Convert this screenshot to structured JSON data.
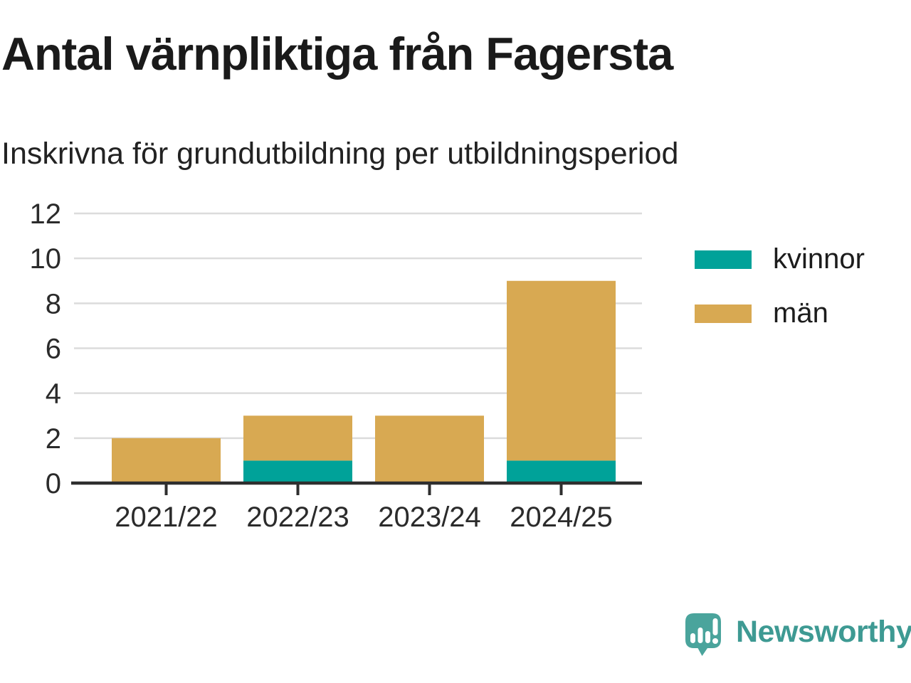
{
  "chart_data": {
    "type": "bar",
    "stacked": true,
    "title": "Antal värnpliktiga från Fagersta",
    "subtitle": "Inskrivna för grundutbildning per utbildningsperiod",
    "categories": [
      "2021/22",
      "2022/23",
      "2023/24",
      "2024/25"
    ],
    "series": [
      {
        "name": "kvinnor",
        "color": "#00a299",
        "values": [
          0,
          1,
          0,
          1
        ]
      },
      {
        "name": "män",
        "color": "#d8a952",
        "values": [
          2,
          2,
          3,
          8
        ]
      }
    ],
    "totals": [
      2,
      3,
      3,
      9
    ],
    "xlabel": "",
    "ylabel": "",
    "ylim": [
      0,
      12
    ],
    "yticks": [
      0,
      2,
      4,
      6,
      8,
      10,
      12
    ],
    "grid": "horizontal",
    "legend_position": "right"
  },
  "style_colors": {
    "axis": "#2e2e2e",
    "gridline": "#dcdcdc",
    "tick_label": "#2b2b2b",
    "title_text": "#1a1a1a"
  },
  "branding": {
    "wordmark": "Newsworthy",
    "logo_icon": "speech-bubble-bar-chart-icon",
    "wordmark_color": "#3e9a93",
    "badge_color": "#4aa49c",
    "badge_mark_color": "#ffffff"
  }
}
